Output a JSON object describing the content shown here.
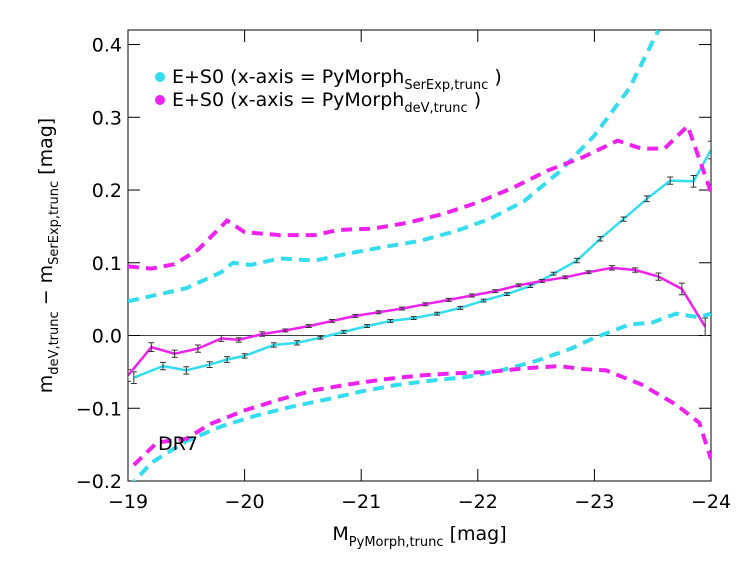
{
  "chart_data": {
    "type": "line",
    "xlabel": [
      "M",
      "PyMorph,trunc",
      "  [mag]"
    ],
    "ylabel": [
      "m",
      "deV,trunc",
      " − m",
      "SerExp,trunc",
      "  [mag]"
    ],
    "annotation": "DR7",
    "xlim": [
      -19,
      -24
    ],
    "ylim": [
      -0.2,
      0.42
    ],
    "xticks": [
      {
        "value": -19,
        "label": "−19"
      },
      {
        "value": -20,
        "label": "−20"
      },
      {
        "value": -21,
        "label": "−21"
      },
      {
        "value": -22,
        "label": "−22"
      },
      {
        "value": -23,
        "label": "−23"
      },
      {
        "value": -24,
        "label": "−24"
      }
    ],
    "yticks": [
      {
        "value": -0.2,
        "label": "−0.2"
      },
      {
        "value": -0.1,
        "label": "−0.1"
      },
      {
        "value": 0,
        "label": "0.0"
      },
      0.1,
      0.2,
      0.3,
      0.4
    ],
    "hline": 0,
    "series": [
      {
        "name": [
          "E+S0 (x-axis = PyMorph",
          "SerExp,trunc",
          " )"
        ],
        "color": "#33ddee",
        "dashed": false,
        "x": [
          -19.05,
          -19.3,
          -19.5,
          -19.7,
          -19.85,
          -20.0,
          -20.25,
          -20.45,
          -20.65,
          -20.85,
          -21.05,
          -21.25,
          -21.45,
          -21.65,
          -21.85,
          -22.05,
          -22.25,
          -22.45,
          -22.65,
          -22.85,
          -23.05,
          -23.25,
          -23.45,
          -23.65,
          -23.85,
          -24.0
        ],
        "values": [
          -0.058,
          -0.042,
          -0.048,
          -0.04,
          -0.033,
          -0.028,
          -0.013,
          -0.01,
          -0.003,
          0.005,
          0.013,
          0.02,
          0.024,
          0.03,
          0.038,
          0.048,
          0.057,
          0.068,
          0.085,
          0.103,
          0.133,
          0.16,
          0.188,
          0.213,
          0.212,
          0.255
        ],
        "errors": [
          0.008,
          0.005,
          0.005,
          0.004,
          0.004,
          0.003,
          0.003,
          0.003,
          0.002,
          0.002,
          0.002,
          0.002,
          0.002,
          0.002,
          0.002,
          0.002,
          0.002,
          0.002,
          0.002,
          0.003,
          0.003,
          0.003,
          0.004,
          0.005,
          0.008,
          0.012
        ]
      },
      {
        "name": [
          "E+S0 (x-axis = PyMorph",
          "deV,trunc",
          " )"
        ],
        "color": "#ee22ee",
        "dashed": false,
        "x": [
          -19.0,
          -19.2,
          -19.4,
          -19.6,
          -19.8,
          -19.95,
          -20.15,
          -20.35,
          -20.55,
          -20.75,
          -20.95,
          -21.15,
          -21.35,
          -21.55,
          -21.75,
          -21.95,
          -22.15,
          -22.35,
          -22.55,
          -22.75,
          -22.95,
          -23.15,
          -23.35,
          -23.55,
          -23.75,
          -23.95
        ],
        "values": [
          -0.055,
          -0.016,
          -0.025,
          -0.018,
          -0.004,
          -0.006,
          0.002,
          0.007,
          0.013,
          0.02,
          0.027,
          0.032,
          0.037,
          0.043,
          0.049,
          0.055,
          0.061,
          0.069,
          0.075,
          0.08,
          0.087,
          0.093,
          0.09,
          0.081,
          0.064,
          0.012
        ],
        "errors": [
          0.008,
          0.006,
          0.005,
          0.005,
          0.004,
          0.003,
          0.003,
          0.002,
          0.002,
          0.002,
          0.002,
          0.002,
          0.002,
          0.002,
          0.002,
          0.002,
          0.002,
          0.002,
          0.002,
          0.002,
          0.002,
          0.003,
          0.003,
          0.005,
          0.008,
          0.012
        ]
      },
      {
        "color": "#33ddee",
        "dashed": true,
        "x": [
          -19.0,
          -19.5,
          -19.8,
          -19.9,
          -20.05,
          -20.3,
          -20.6,
          -20.9,
          -21.2,
          -21.5,
          -21.8,
          -22.1,
          -22.4,
          -22.7,
          -23.0,
          -23.3,
          -23.55
        ],
        "values": [
          0.047,
          0.065,
          0.087,
          0.1,
          0.097,
          0.106,
          0.103,
          0.113,
          0.122,
          0.13,
          0.143,
          0.16,
          0.185,
          0.225,
          0.275,
          0.34,
          0.42
        ]
      },
      {
        "color": "#33ddee",
        "dashed": true,
        "x": [
          -19.0,
          -19.2,
          -19.5,
          -19.8,
          -20.1,
          -20.4,
          -20.7,
          -21.0,
          -21.3,
          -21.6,
          -21.9,
          -22.2,
          -22.5,
          -22.8,
          -23.0,
          -23.3,
          -23.5,
          -23.7,
          -23.9,
          -24.0
        ],
        "values": [
          -0.21,
          -0.175,
          -0.145,
          -0.125,
          -0.11,
          -0.098,
          -0.088,
          -0.077,
          -0.068,
          -0.062,
          -0.057,
          -0.048,
          -0.035,
          -0.018,
          -0.003,
          0.015,
          0.018,
          0.03,
          0.025,
          0.03
        ]
      },
      {
        "color": "#ee22ee",
        "dashed": true,
        "x": [
          -19.0,
          -19.2,
          -19.4,
          -19.6,
          -19.8,
          -19.85,
          -20.0,
          -20.3,
          -20.6,
          -20.8,
          -21.1,
          -21.4,
          -21.7,
          -22.0,
          -22.3,
          -22.6,
          -22.9,
          -23.2,
          -23.4,
          -23.6,
          -23.8,
          -24.0
        ],
        "values": [
          0.095,
          0.092,
          0.098,
          0.118,
          0.15,
          0.158,
          0.142,
          0.138,
          0.138,
          0.145,
          0.147,
          0.155,
          0.167,
          0.183,
          0.203,
          0.227,
          0.245,
          0.268,
          0.257,
          0.257,
          0.288,
          0.197
        ]
      },
      {
        "color": "#ee22ee",
        "dashed": true,
        "x": [
          -19.05,
          -19.25,
          -19.5,
          -19.7,
          -20.0,
          -20.3,
          -20.6,
          -20.9,
          -21.2,
          -21.5,
          -21.8,
          -22.1,
          -22.4,
          -22.7,
          -22.9,
          -23.1,
          -23.4,
          -23.7,
          -23.9,
          -24.0
        ],
        "values": [
          -0.178,
          -0.147,
          -0.142,
          -0.122,
          -0.103,
          -0.088,
          -0.075,
          -0.067,
          -0.06,
          -0.055,
          -0.052,
          -0.05,
          -0.045,
          -0.042,
          -0.046,
          -0.048,
          -0.067,
          -0.095,
          -0.12,
          -0.17
        ]
      }
    ]
  }
}
